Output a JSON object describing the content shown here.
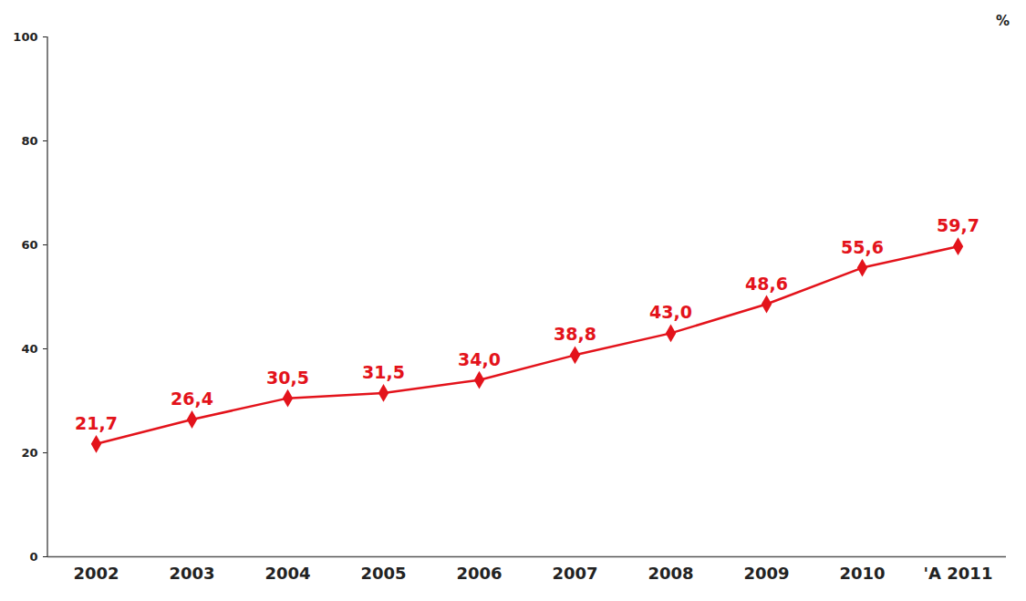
{
  "chart_data": {
    "type": "line",
    "categories": [
      "2002",
      "2003",
      "2004",
      "2005",
      "2006",
      "2007",
      "2008",
      "2009",
      "2010",
      "'A 2011"
    ],
    "values": [
      21.7,
      26.4,
      30.5,
      31.5,
      34.0,
      38.8,
      43.0,
      48.6,
      55.6,
      59.7
    ],
    "value_labels": [
      "21,7",
      "26,4",
      "30,5",
      "31,5",
      "34,0",
      "38,8",
      "43,0",
      "48,6",
      "55,6",
      "59,7"
    ],
    "color": "#e3131b",
    "marker": "diamond",
    "ylabel": "%",
    "ylim": [
      0,
      100
    ],
    "yticks": [
      0,
      20,
      40,
      60,
      80,
      100
    ],
    "grid": false,
    "data_labels": true
  }
}
